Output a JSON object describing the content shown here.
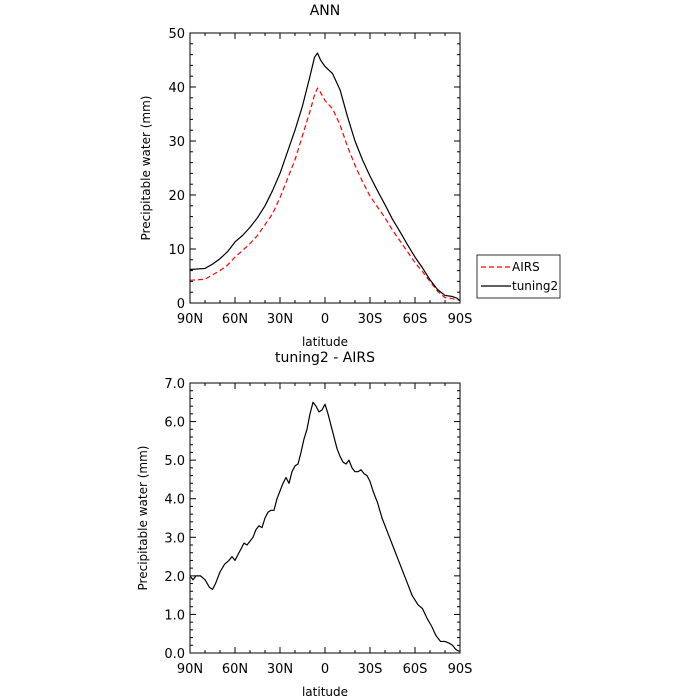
{
  "chart_data": [
    {
      "type": "line",
      "title": "ANN",
      "xlabel": "latitude",
      "ylabel": "Precipitable water (mm)",
      "xlim": [
        -90,
        90
      ],
      "ylim": [
        0,
        50
      ],
      "x_ticks": [
        -90,
        -60,
        -30,
        0,
        30,
        60,
        90
      ],
      "x_tick_labels": [
        "90N",
        "60N",
        "30N",
        "0",
        "30S",
        "60S",
        "90S"
      ],
      "y_ticks": [
        0,
        10,
        20,
        30,
        40,
        50
      ],
      "y_tick_labels": [
        "0",
        "10",
        "20",
        "30",
        "40",
        "50"
      ],
      "legend": "right",
      "series": [
        {
          "name": "AIRS",
          "color": "#ff0000",
          "style": "dashed",
          "x": [
            -90,
            -80,
            -75,
            -70,
            -65,
            -60,
            -55,
            -50,
            -45,
            -40,
            -35,
            -30,
            -25,
            -20,
            -15,
            -10,
            -7,
            -5,
            -3,
            0,
            5,
            10,
            15,
            20,
            25,
            30,
            35,
            40,
            45,
            50,
            55,
            60,
            65,
            70,
            75,
            80,
            85,
            88,
            90
          ],
          "y": [
            4.2,
            4.4,
            5.2,
            6.0,
            7.0,
            8.5,
            9.7,
            11.0,
            12.5,
            14.5,
            16.5,
            19.5,
            23.0,
            26.5,
            31.0,
            35.5,
            38.5,
            39.8,
            39.0,
            37.5,
            36.0,
            33.0,
            29.0,
            25.5,
            22.5,
            19.8,
            17.8,
            15.8,
            13.5,
            11.5,
            9.5,
            7.5,
            5.8,
            4.0,
            2.2,
            1.0,
            0.8,
            0.6,
            0.5
          ]
        },
        {
          "name": "tuning2",
          "color": "#000000",
          "style": "solid",
          "x": [
            -90,
            -80,
            -75,
            -70,
            -65,
            -60,
            -55,
            -50,
            -45,
            -40,
            -35,
            -30,
            -25,
            -20,
            -15,
            -10,
            -7,
            -5,
            -3,
            0,
            5,
            10,
            15,
            20,
            25,
            30,
            35,
            40,
            45,
            50,
            55,
            60,
            65,
            70,
            75,
            80,
            85,
            88,
            90
          ],
          "y": [
            6.2,
            6.4,
            7.2,
            8.2,
            9.5,
            11.3,
            12.5,
            14.0,
            15.8,
            18.0,
            20.8,
            24.0,
            28.0,
            32.0,
            36.5,
            42.0,
            45.5,
            46.3,
            45.0,
            43.8,
            42.5,
            39.5,
            34.5,
            30.0,
            26.5,
            23.5,
            20.8,
            18.2,
            15.5,
            13.2,
            10.8,
            8.5,
            6.5,
            4.3,
            2.5,
            1.4,
            1.2,
            0.9,
            0.4
          ]
        }
      ]
    },
    {
      "type": "line",
      "title": "tuning2 - AIRS",
      "xlabel": "latitude",
      "ylabel": "Precipitable water (mm)",
      "xlim": [
        -90,
        90
      ],
      "ylim": [
        0,
        7
      ],
      "x_ticks": [
        -90,
        -60,
        -30,
        0,
        30,
        60,
        90
      ],
      "x_tick_labels": [
        "90N",
        "60N",
        "30N",
        "0",
        "30S",
        "60S",
        "90S"
      ],
      "y_ticks": [
        0,
        1,
        2,
        3,
        4,
        5,
        6,
        7
      ],
      "y_tick_labels": [
        "0.0",
        "1.0",
        "2.0",
        "3.0",
        "4.0",
        "5.0",
        "6.0",
        "7.0"
      ],
      "series": [
        {
          "color": "#000000",
          "style": "solid",
          "x": [
            -90,
            -88,
            -86,
            -83,
            -80,
            -77,
            -75,
            -73,
            -70,
            -67,
            -64,
            -62,
            -61,
            -60,
            -58,
            -56,
            -54,
            -52,
            -50,
            -48,
            -46,
            -44,
            -42,
            -40,
            -38,
            -36,
            -34,
            -32,
            -30,
            -28,
            -26,
            -24,
            -22,
            -20,
            -18,
            -16,
            -14,
            -12,
            -10,
            -8,
            -6,
            -4,
            -2,
            0,
            2,
            4,
            6,
            8,
            10,
            12,
            14,
            16,
            18,
            20,
            22,
            24,
            26,
            28,
            30,
            32,
            35,
            38,
            42,
            46,
            50,
            54,
            58,
            62,
            65,
            68,
            71,
            74,
            77,
            80,
            83,
            85,
            87,
            89,
            90
          ],
          "y": [
            2.0,
            1.9,
            2.0,
            2.0,
            1.9,
            1.7,
            1.65,
            1.8,
            2.1,
            2.3,
            2.4,
            2.5,
            2.45,
            2.4,
            2.55,
            2.7,
            2.85,
            2.8,
            2.9,
            3.0,
            3.2,
            3.3,
            3.25,
            3.5,
            3.65,
            3.7,
            3.7,
            4.0,
            4.2,
            4.4,
            4.55,
            4.4,
            4.7,
            4.85,
            4.9,
            5.2,
            5.55,
            5.8,
            6.2,
            6.5,
            6.4,
            6.25,
            6.3,
            6.45,
            6.2,
            5.9,
            5.6,
            5.3,
            5.1,
            4.95,
            4.9,
            5.0,
            4.8,
            4.7,
            4.7,
            4.75,
            4.65,
            4.6,
            4.45,
            4.2,
            3.9,
            3.5,
            3.1,
            2.7,
            2.3,
            1.9,
            1.5,
            1.25,
            1.15,
            0.9,
            0.7,
            0.45,
            0.3,
            0.3,
            0.25,
            0.2,
            0.1,
            0.05,
            0.05
          ]
        }
      ]
    }
  ]
}
